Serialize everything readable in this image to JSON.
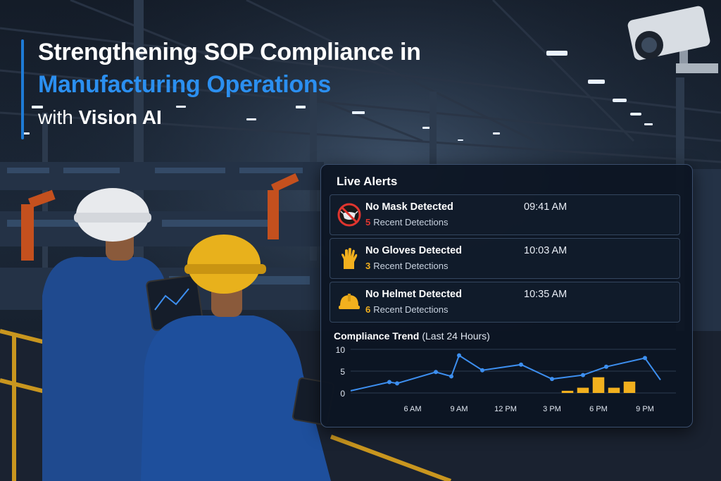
{
  "headline": {
    "line1": "Strengthening SOP Compliance in",
    "line2": "Manufacturing Operations",
    "line3_prefix": "with",
    "line3_emphasis": "Vision AI"
  },
  "alerts_panel": {
    "title": "Live Alerts",
    "items": [
      {
        "label": "No Mask Detected",
        "time": "09:41 AM",
        "count": "5",
        "count_suffix": "Recent Detections",
        "icon": "no-mask-icon",
        "color": "#e0352f"
      },
      {
        "label": "No Gloves Detected",
        "time": "10:03 AM",
        "count": "3",
        "count_suffix": "Recent Detections",
        "icon": "gloves-icon",
        "color": "#f2b01e"
      },
      {
        "label": "No Helmet Detected",
        "time": "10:35 AM",
        "count": "6",
        "count_suffix": "Recent Detections",
        "icon": "helmet-icon",
        "color": "#f2b01e"
      }
    ]
  },
  "trend": {
    "title": "Compliance Trend",
    "subtitle": "(Last 24 Hours)"
  },
  "chart_data": {
    "type": "line",
    "yticks": [
      0,
      5,
      10
    ],
    "ylim": [
      0,
      10
    ],
    "xticks": [
      "6 AM",
      "9 AM",
      "12 PM",
      "3 PM",
      "6 PM",
      "9 PM"
    ],
    "xlim": [
      2,
      23
    ],
    "grid": true,
    "series": [
      {
        "type": "line",
        "color": "#3d8ff0",
        "x": [
          2,
          4.5,
          5,
          7.5,
          8.5,
          9,
          10.5,
          13,
          15,
          17,
          18.5,
          21,
          22
        ],
        "y": [
          0.5,
          2.5,
          2.2,
          4.8,
          3.8,
          8.6,
          5.2,
          6.5,
          3.2,
          4.1,
          6.0,
          8.0,
          3.0
        ]
      },
      {
        "type": "bar",
        "color": "#f2b01e",
        "x": [
          16,
          17,
          18,
          19,
          20
        ],
        "y": [
          0.5,
          1.2,
          3.6,
          1.2,
          2.6
        ]
      }
    ]
  },
  "colors": {
    "accent": "#2b8ff0",
    "alert_red": "#e0352f",
    "alert_amber": "#f2b01e",
    "panel_bg": "#0c1422"
  }
}
